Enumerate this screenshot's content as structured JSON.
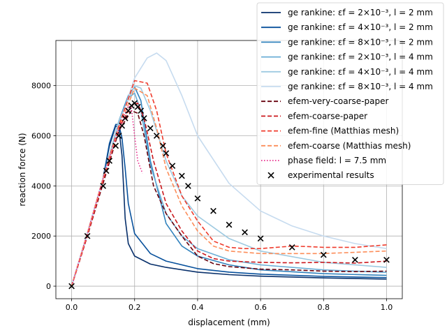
{
  "chart_data": {
    "type": "line",
    "xlabel": "displacement (mm)",
    "ylabel": "reaction force (N)",
    "xlim": [
      -0.05,
      1.05
    ],
    "ylim": [
      -500,
      9800
    ],
    "xticks": [
      0.0,
      0.2,
      0.4,
      0.6,
      0.8,
      1.0
    ],
    "xtick_labels": [
      "0.0",
      "0.2",
      "0.4",
      "0.6",
      "0.8",
      "1.0"
    ],
    "yticks": [
      0,
      2000,
      4000,
      6000,
      8000
    ],
    "ytick_labels": [
      "0",
      "2000",
      "4000",
      "6000",
      "8000"
    ],
    "grid": true,
    "legend_position": "top-right",
    "series": [
      {
        "name": "ge rankine: εf = 2×10⁻³, l = 2 mm",
        "color": "#08306b",
        "style": "solid",
        "x": [
          0,
          0.05,
          0.1,
          0.12,
          0.14,
          0.15,
          0.16,
          0.17,
          0.18,
          0.2,
          0.25,
          0.3,
          0.4,
          0.5,
          0.6,
          0.8,
          1.0
        ],
        "y": [
          0,
          2100,
          4300,
          5600,
          6400,
          6300,
          5200,
          2700,
          1700,
          1200,
          880,
          750,
          560,
          460,
          400,
          330,
          280
        ]
      },
      {
        "name": "ge rankine: εf = 4×10⁻³, l = 2 mm",
        "color": "#08519c",
        "style": "solid",
        "x": [
          0,
          0.05,
          0.1,
          0.12,
          0.14,
          0.15,
          0.16,
          0.17,
          0.18,
          0.2,
          0.25,
          0.3,
          0.4,
          0.5,
          0.6,
          0.8,
          1.0
        ],
        "y": [
          0,
          2100,
          4300,
          5700,
          6450,
          6450,
          5900,
          4700,
          3300,
          2100,
          1300,
          1000,
          700,
          560,
          480,
          390,
          340
        ]
      },
      {
        "name": "ge rankine: εf = 8×10⁻³, l = 2 mm",
        "color": "#3182bd",
        "style": "solid",
        "x": [
          0,
          0.05,
          0.1,
          0.15,
          0.18,
          0.2,
          0.22,
          0.25,
          0.3,
          0.35,
          0.4,
          0.5,
          0.6,
          0.8,
          1.0
        ],
        "y": [
          0,
          2100,
          4300,
          6600,
          7600,
          7950,
          7400,
          5000,
          2500,
          1600,
          1200,
          850,
          650,
          500,
          430
        ]
      },
      {
        "name": "ge rankine: εf = 2×10⁻³, l = 4 mm",
        "color": "#6baed6",
        "style": "solid",
        "x": [
          0,
          0.05,
          0.1,
          0.15,
          0.18,
          0.2,
          0.22,
          0.25,
          0.3,
          0.35,
          0.4,
          0.5,
          0.6,
          0.8,
          1.0
        ],
        "y": [
          0,
          2100,
          4300,
          6500,
          7500,
          7700,
          7000,
          4800,
          2900,
          2000,
          1500,
          1050,
          850,
          650,
          550
        ]
      },
      {
        "name": "ge rankine: εf = 4×10⁻³, l = 4 mm",
        "color": "#9ecae1",
        "style": "solid",
        "x": [
          0,
          0.05,
          0.1,
          0.15,
          0.2,
          0.22,
          0.25,
          0.3,
          0.35,
          0.4,
          0.5,
          0.6,
          0.8,
          1.0
        ],
        "y": [
          0,
          2100,
          4300,
          6600,
          8000,
          7900,
          7000,
          5000,
          3600,
          2800,
          1900,
          1400,
          950,
          750
        ]
      },
      {
        "name": "ge rankine: εf = 8×10⁻³, l = 4 mm",
        "color": "#c6dbef",
        "style": "solid",
        "x": [
          0,
          0.05,
          0.1,
          0.15,
          0.2,
          0.24,
          0.27,
          0.3,
          0.35,
          0.4,
          0.5,
          0.6,
          0.7,
          0.8,
          0.9,
          1.0
        ],
        "y": [
          0,
          2100,
          4300,
          6400,
          8300,
          9100,
          9300,
          9000,
          7600,
          6000,
          4100,
          3000,
          2400,
          2000,
          1700,
          1500
        ]
      },
      {
        "name": "efem-very-coarse-paper",
        "color": "#67000d",
        "style": "dashed",
        "x": [
          0,
          0.05,
          0.1,
          0.15,
          0.19,
          0.21,
          0.23,
          0.26,
          0.3,
          0.35,
          0.4,
          0.45,
          0.5,
          0.6,
          0.7,
          0.8,
          0.9,
          1.0
        ],
        "y": [
          0,
          2000,
          4100,
          6200,
          7000,
          6900,
          6000,
          4000,
          2900,
          2000,
          1200,
          900,
          780,
          680,
          650,
          600,
          580,
          600
        ]
      },
      {
        "name": "efem-coarse-paper",
        "color": "#cb181d",
        "style": "dashed",
        "x": [
          0,
          0.05,
          0.1,
          0.15,
          0.19,
          0.21,
          0.23,
          0.26,
          0.3,
          0.35,
          0.4,
          0.45,
          0.5,
          0.6,
          0.7,
          0.8,
          0.9,
          1.0
        ],
        "y": [
          0,
          2000,
          4200,
          6300,
          7200,
          7300,
          6700,
          5000,
          3300,
          2200,
          1400,
          1100,
          1000,
          950,
          930,
          950,
          920,
          1000
        ]
      },
      {
        "name": "efem-fine (Matthias mesh)",
        "color": "#ef3b2c",
        "style": "dashed",
        "x": [
          0,
          0.05,
          0.1,
          0.15,
          0.2,
          0.24,
          0.27,
          0.3,
          0.35,
          0.4,
          0.45,
          0.5,
          0.55,
          0.6,
          0.65,
          0.7,
          0.75,
          0.8,
          0.85,
          0.9,
          0.95,
          1.0
        ],
        "y": [
          0,
          2100,
          4300,
          6400,
          8200,
          8100,
          7000,
          5300,
          3600,
          2600,
          1800,
          1550,
          1500,
          1500,
          1550,
          1600,
          1580,
          1550,
          1550,
          1550,
          1600,
          1650
        ]
      },
      {
        "name": "efem-coarse (Matthias mesh)",
        "color": "#fc8d59",
        "style": "dashed",
        "x": [
          0,
          0.05,
          0.1,
          0.15,
          0.2,
          0.24,
          0.27,
          0.3,
          0.35,
          0.4,
          0.45,
          0.5,
          0.6,
          0.7,
          0.8,
          0.9,
          1.0
        ],
        "y": [
          0,
          2100,
          4300,
          6300,
          7900,
          7600,
          6300,
          4700,
          3200,
          2200,
          1600,
          1400,
          1300,
          1300,
          1300,
          1350,
          1400
        ]
      },
      {
        "name": "phase field: l = 7.5 mm",
        "color": "#e7298a",
        "style": "dotted",
        "x": [
          0,
          0.05,
          0.1,
          0.15,
          0.18,
          0.19,
          0.2,
          0.21,
          0.225
        ],
        "y": [
          0,
          2100,
          4300,
          6300,
          7200,
          7100,
          6000,
          5000,
          4500
        ]
      },
      {
        "name": "experimental results",
        "color": "#000000",
        "style": "marker-x",
        "x": [
          0,
          0.05,
          0.1,
          0.11,
          0.12,
          0.14,
          0.15,
          0.16,
          0.17,
          0.18,
          0.19,
          0.2,
          0.21,
          0.22,
          0.23,
          0.25,
          0.27,
          0.29,
          0.3,
          0.32,
          0.35,
          0.37,
          0.4,
          0.45,
          0.5,
          0.55,
          0.6,
          0.7,
          0.8,
          0.9,
          1.0
        ],
        "y": [
          0,
          2000,
          4000,
          4600,
          5000,
          5600,
          6000,
          6400,
          6700,
          7000,
          7200,
          7300,
          7150,
          7000,
          6700,
          6300,
          6000,
          5600,
          5300,
          4800,
          4400,
          4000,
          3500,
          3000,
          2450,
          2150,
          1900,
          1550,
          1250,
          1050,
          1050
        ]
      }
    ]
  }
}
